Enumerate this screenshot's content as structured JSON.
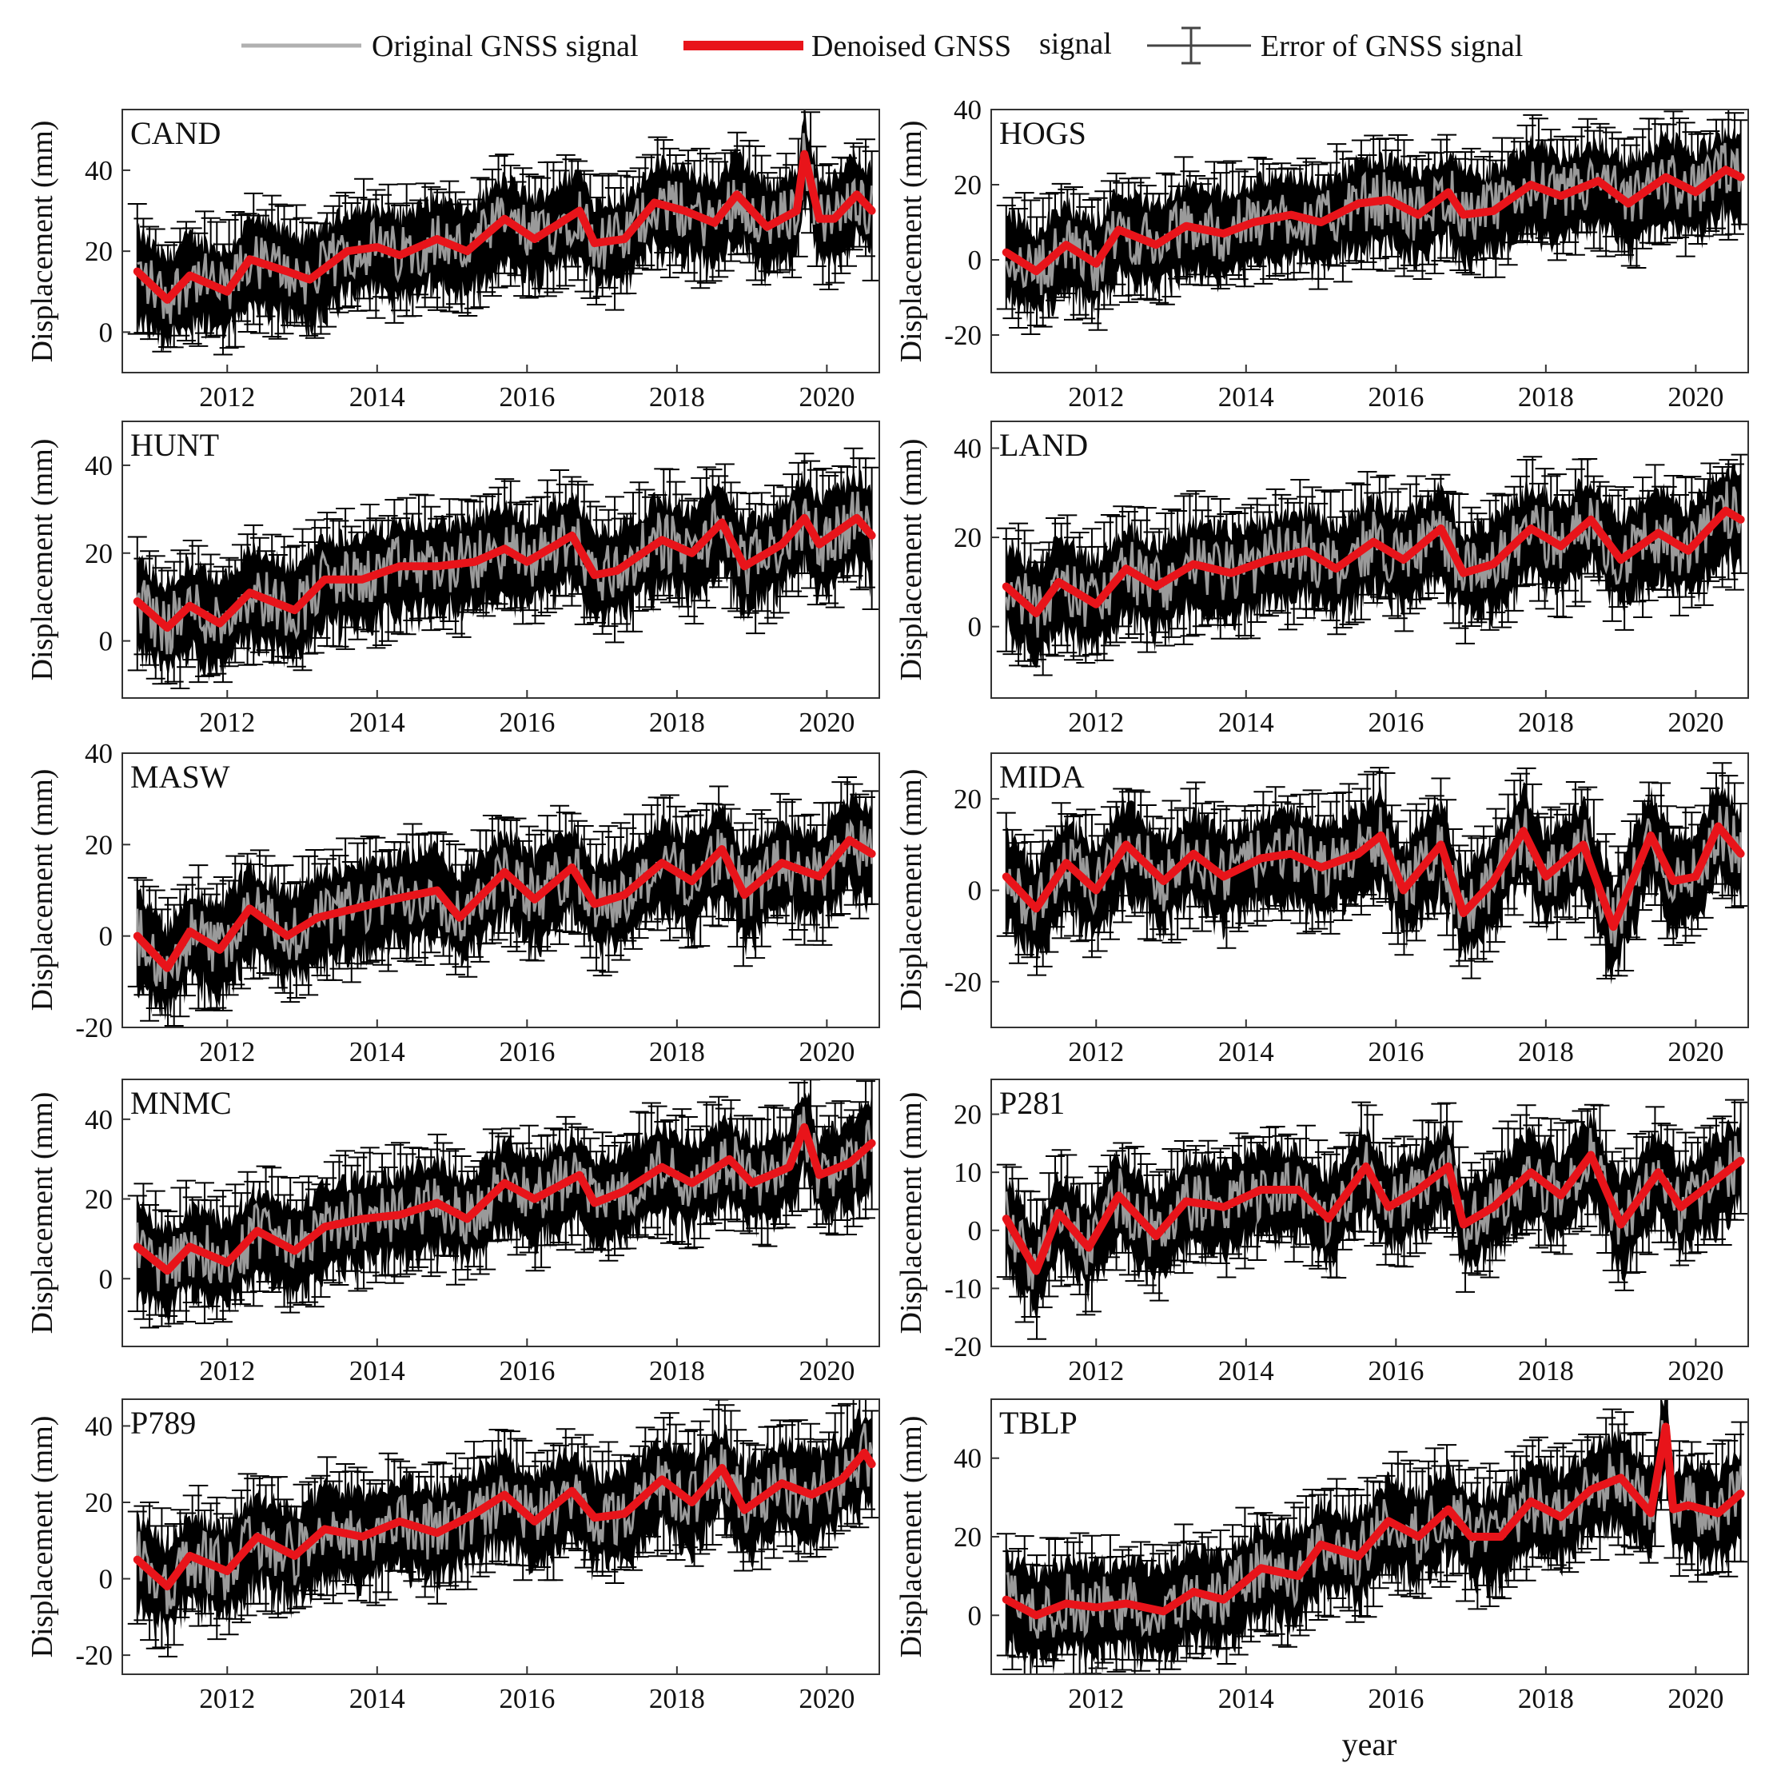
{
  "legend": {
    "original": "Original GNSS signal",
    "denoised": "Denoised GNSS",
    "denoised_suffix": "signal",
    "error": "Error of GNSS signal"
  },
  "colors": {
    "original": "#9a9a9a",
    "denoised": "#e8141a",
    "error": "#000000"
  },
  "chart_data": [
    {
      "type": "line",
      "station": "CAND",
      "xlabel": "",
      "ylabel": "Displacement (mm)",
      "xlim": [
        2010.6,
        2020.7
      ],
      "ylim": [
        -10,
        55
      ],
      "yticks": [
        0,
        20,
        40
      ],
      "xticks": [
        2012,
        2014,
        2016,
        2018,
        2020
      ],
      "series": [
        {
          "name": "Denoised GNSS signal",
          "x": [
            2010.8,
            2011.2,
            2011.5,
            2012.0,
            2012.3,
            2012.8,
            2013.1,
            2013.6,
            2014.0,
            2014.3,
            2014.8,
            2015.2,
            2015.7,
            2016.1,
            2016.7,
            2016.9,
            2017.3,
            2017.7,
            2018.1,
            2018.5,
            2018.8,
            2019.2,
            2019.6,
            2019.7,
            2019.9,
            2020.1,
            2020.4,
            2020.6
          ],
          "y": [
            15,
            8,
            14,
            10,
            18,
            15,
            13,
            20,
            21,
            19,
            23,
            20,
            28,
            23,
            30,
            22,
            23,
            32,
            30,
            27,
            34,
            26,
            30,
            44,
            28,
            28,
            34,
            30
          ]
        }
      ]
    },
    {
      "type": "line",
      "station": "HOGS",
      "xlabel": "",
      "ylabel": "Displacement (mm)",
      "xlim": [
        2010.6,
        2020.7
      ],
      "ylim": [
        -30,
        40
      ],
      "yticks": [
        -20,
        0,
        20,
        40
      ],
      "xticks": [
        2012,
        2014,
        2016,
        2018,
        2020
      ],
      "series": [
        {
          "name": "Denoised GNSS signal",
          "x": [
            2010.8,
            2011.2,
            2011.6,
            2012.0,
            2012.3,
            2012.8,
            2013.2,
            2013.7,
            2014.1,
            2014.6,
            2015.0,
            2015.5,
            2015.9,
            2016.3,
            2016.7,
            2016.9,
            2017.3,
            2017.8,
            2018.2,
            2018.7,
            2019.1,
            2019.6,
            2020.0,
            2020.4,
            2020.6
          ],
          "y": [
            2,
            -3,
            4,
            -1,
            8,
            4,
            9,
            7,
            10,
            12,
            10,
            15,
            16,
            12,
            18,
            12,
            13,
            20,
            17,
            21,
            15,
            22,
            18,
            24,
            22
          ]
        }
      ]
    },
    {
      "type": "line",
      "station": "HUNT",
      "xlabel": "",
      "ylabel": "Displacement (mm)",
      "xlim": [
        2010.6,
        2020.7
      ],
      "ylim": [
        -13,
        50
      ],
      "yticks": [
        0,
        20,
        40
      ],
      "xticks": [
        2012,
        2014,
        2016,
        2018,
        2020
      ],
      "series": [
        {
          "name": "Denoised GNSS signal",
          "x": [
            2010.8,
            2011.2,
            2011.5,
            2011.9,
            2012.3,
            2012.9,
            2013.3,
            2013.8,
            2014.3,
            2014.8,
            2015.3,
            2015.7,
            2016.0,
            2016.6,
            2016.9,
            2017.2,
            2017.8,
            2018.2,
            2018.6,
            2018.9,
            2019.4,
            2019.7,
            2019.9,
            2020.4,
            2020.6
          ],
          "y": [
            9,
            3,
            8,
            4,
            11,
            7,
            14,
            14,
            17,
            17,
            18,
            21,
            18,
            24,
            15,
            16,
            23,
            20,
            27,
            17,
            22,
            28,
            22,
            28,
            24
          ]
        }
      ]
    },
    {
      "type": "line",
      "station": "LAND",
      "xlabel": "",
      "ylabel": "Displacement (mm)",
      "xlim": [
        2010.6,
        2020.7
      ],
      "ylim": [
        -16,
        46
      ],
      "yticks": [
        0,
        20,
        40
      ],
      "xticks": [
        2012,
        2014,
        2016,
        2018,
        2020
      ],
      "series": [
        {
          "name": "Denoised GNSS signal",
          "x": [
            2010.8,
            2011.2,
            2011.5,
            2012.0,
            2012.4,
            2012.8,
            2013.3,
            2013.8,
            2014.3,
            2014.8,
            2015.2,
            2015.7,
            2016.1,
            2016.6,
            2016.9,
            2017.3,
            2017.8,
            2018.2,
            2018.6,
            2019.0,
            2019.5,
            2019.9,
            2020.4,
            2020.6
          ],
          "y": [
            9,
            3,
            10,
            5,
            13,
            9,
            14,
            12,
            15,
            17,
            13,
            19,
            15,
            22,
            12,
            14,
            22,
            18,
            24,
            15,
            21,
            17,
            26,
            24
          ]
        }
      ]
    },
    {
      "type": "line",
      "station": "MASW",
      "xlabel": "",
      "ylabel": "Displacement (mm)",
      "xlim": [
        2010.6,
        2020.7
      ],
      "ylim": [
        -20,
        40
      ],
      "yticks": [
        -20,
        0,
        20,
        40
      ],
      "xticks": [
        2012,
        2014,
        2016,
        2018,
        2020
      ],
      "series": [
        {
          "name": "Denoised GNSS signal",
          "x": [
            2010.8,
            2011.2,
            2011.5,
            2011.9,
            2012.3,
            2012.8,
            2013.2,
            2013.7,
            2014.2,
            2014.8,
            2015.1,
            2015.7,
            2016.1,
            2016.6,
            2016.9,
            2017.3,
            2017.8,
            2018.2,
            2018.6,
            2018.9,
            2019.4,
            2019.9,
            2020.3,
            2020.6
          ],
          "y": [
            0,
            -7,
            1,
            -3,
            6,
            0,
            4,
            6,
            8,
            10,
            4,
            14,
            8,
            15,
            7,
            9,
            16,
            12,
            19,
            9,
            16,
            13,
            21,
            18
          ]
        }
      ]
    },
    {
      "type": "line",
      "station": "MIDA",
      "xlabel": "",
      "ylabel": "Displacement (mm)",
      "xlim": [
        2010.6,
        2020.7
      ],
      "ylim": [
        -30,
        30
      ],
      "yticks": [
        -20,
        0,
        20
      ],
      "xticks": [
        2012,
        2014,
        2016,
        2018,
        2020
      ],
      "series": [
        {
          "name": "Denoised GNSS signal",
          "x": [
            2010.8,
            2011.2,
            2011.6,
            2012.0,
            2012.4,
            2012.9,
            2013.3,
            2013.7,
            2014.2,
            2014.6,
            2015.0,
            2015.5,
            2015.8,
            2016.1,
            2016.6,
            2016.9,
            2017.3,
            2017.7,
            2018.0,
            2018.5,
            2018.9,
            2019.4,
            2019.7,
            2020.0,
            2020.3,
            2020.6
          ],
          "y": [
            3,
            -4,
            6,
            0,
            10,
            2,
            8,
            3,
            7,
            8,
            5,
            8,
            12,
            0,
            10,
            -5,
            2,
            13,
            3,
            10,
            -8,
            12,
            2,
            3,
            14,
            8
          ]
        }
      ]
    },
    {
      "type": "line",
      "station": "MNMC",
      "xlabel": "",
      "ylabel": "Displacement (mm)",
      "xlim": [
        2010.6,
        2020.7
      ],
      "ylim": [
        -17,
        50
      ],
      "yticks": [
        0,
        20,
        40
      ],
      "xticks": [
        2012,
        2014,
        2016,
        2018,
        2020
      ],
      "series": [
        {
          "name": "Denoised GNSS signal",
          "x": [
            2010.8,
            2011.2,
            2011.5,
            2012.0,
            2012.4,
            2012.9,
            2013.3,
            2013.8,
            2014.3,
            2014.8,
            2015.2,
            2015.7,
            2016.1,
            2016.7,
            2016.9,
            2017.3,
            2017.8,
            2018.2,
            2018.7,
            2019.0,
            2019.5,
            2019.7,
            2019.9,
            2020.3,
            2020.6
          ],
          "y": [
            8,
            2,
            8,
            4,
            12,
            7,
            13,
            15,
            16,
            19,
            15,
            24,
            20,
            26,
            19,
            22,
            28,
            24,
            30,
            24,
            28,
            38,
            26,
            29,
            34
          ]
        }
      ]
    },
    {
      "type": "line",
      "station": "P281",
      "xlabel": "",
      "ylabel": "Displacement (mm)",
      "xlim": [
        2010.6,
        2020.7
      ],
      "ylim": [
        -20,
        26
      ],
      "yticks": [
        -20,
        -10,
        0,
        10,
        20
      ],
      "xticks": [
        2012,
        2014,
        2016,
        2018,
        2020
      ],
      "series": [
        {
          "name": "Denoised GNSS signal",
          "x": [
            2010.8,
            2011.2,
            2011.5,
            2011.9,
            2012.3,
            2012.8,
            2013.2,
            2013.7,
            2014.2,
            2014.7,
            2015.1,
            2015.6,
            2015.9,
            2016.3,
            2016.7,
            2016.9,
            2017.3,
            2017.8,
            2018.2,
            2018.6,
            2019.0,
            2019.5,
            2019.8,
            2020.2,
            2020.6
          ],
          "y": [
            2,
            -7,
            3,
            -3,
            6,
            -1,
            5,
            4,
            7,
            7,
            2,
            11,
            4,
            7,
            11,
            1,
            4,
            10,
            6,
            13,
            1,
            10,
            4,
            8,
            12
          ]
        }
      ]
    },
    {
      "type": "line",
      "station": "P789",
      "xlabel": "",
      "ylabel": "Displacement (mm)",
      "xlim": [
        2010.6,
        2020.7
      ],
      "ylim": [
        -25,
        47
      ],
      "yticks": [
        -20,
        0,
        20,
        40
      ],
      "xticks": [
        2012,
        2014,
        2016,
        2018,
        2020
      ],
      "series": [
        {
          "name": "Denoised GNSS signal",
          "x": [
            2010.8,
            2011.2,
            2011.5,
            2012.0,
            2012.4,
            2012.9,
            2013.3,
            2013.8,
            2014.3,
            2014.8,
            2015.3,
            2015.7,
            2016.1,
            2016.6,
            2016.9,
            2017.3,
            2017.8,
            2018.2,
            2018.6,
            2018.9,
            2019.4,
            2019.8,
            2020.2,
            2020.5,
            2020.6
          ],
          "y": [
            5,
            -2,
            6,
            2,
            11,
            6,
            13,
            11,
            15,
            12,
            17,
            22,
            15,
            23,
            16,
            17,
            26,
            20,
            29,
            18,
            25,
            22,
            26,
            33,
            30
          ]
        }
      ]
    },
    {
      "type": "line",
      "station": "TBLP",
      "xlabel": "year",
      "ylabel": "Displacement (mm)",
      "xlim": [
        2010.6,
        2020.7
      ],
      "ylim": [
        -15,
        55
      ],
      "yticks": [
        0,
        20,
        40
      ],
      "xticks": [
        2012,
        2014,
        2016,
        2018,
        2020
      ],
      "series": [
        {
          "name": "Denoised GNSS signal",
          "x": [
            2010.8,
            2011.2,
            2011.6,
            2012.0,
            2012.4,
            2012.9,
            2013.3,
            2013.7,
            2014.2,
            2014.7,
            2015.0,
            2015.5,
            2015.9,
            2016.3,
            2016.7,
            2017.0,
            2017.4,
            2017.8,
            2018.2,
            2018.6,
            2019.0,
            2019.4,
            2019.6,
            2019.7,
            2019.9,
            2020.3,
            2020.6
          ],
          "y": [
            4,
            0,
            3,
            2,
            3,
            1,
            6,
            4,
            12,
            10,
            18,
            15,
            24,
            20,
            27,
            20,
            20,
            29,
            25,
            32,
            35,
            26,
            48,
            27,
            28,
            26,
            31
          ]
        }
      ]
    }
  ]
}
